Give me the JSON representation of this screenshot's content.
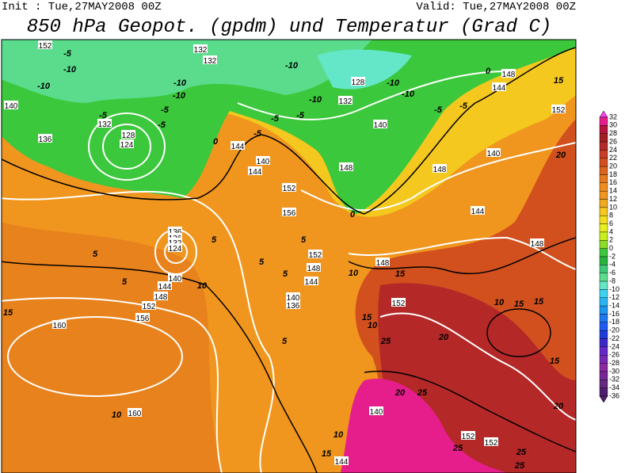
{
  "header": {
    "init": "Init : Tue,27MAY2008 00Z",
    "valid": "Valid: Tue,27MAY2008 00Z",
    "title": "850 hPa Geopot. (gpdm) und Temperatur (Grad C)"
  },
  "geopotential_labels": [
    152,
    132,
    132,
    128,
    132,
    140,
    144,
    148,
    152,
    140,
    136,
    132,
    128,
    124,
    144,
    140,
    144,
    152,
    156,
    148,
    148,
    140,
    144,
    148,
    136,
    136,
    132,
    124,
    140,
    144,
    148,
    152,
    156,
    160,
    160,
    152,
    148,
    144,
    140,
    136,
    148,
    152,
    140,
    152,
    152,
    144
  ],
  "temperature_labels": [
    -5,
    -10,
    -10,
    -10,
    -10,
    -5,
    -5,
    -5,
    -10,
    -10,
    -10,
    -10,
    -5,
    -5,
    -5,
    0,
    -5,
    0,
    -5,
    5,
    5,
    10,
    5,
    5,
    5,
    10,
    15,
    10,
    15,
    15,
    20,
    25,
    15,
    10,
    20,
    15,
    20,
    15,
    5,
    10,
    10,
    15,
    20,
    25,
    25,
    25,
    25,
    15,
    5,
    0
  ],
  "colorbar": {
    "levels": [
      32,
      30,
      28,
      26,
      24,
      22,
      20,
      18,
      16,
      14,
      12,
      10,
      8,
      6,
      4,
      2,
      0,
      -2,
      -4,
      -6,
      -8,
      -10,
      -12,
      -14,
      -16,
      -18,
      -20,
      -22,
      -24,
      -26,
      -28,
      -30,
      -32,
      -34,
      -36
    ]
  }
}
